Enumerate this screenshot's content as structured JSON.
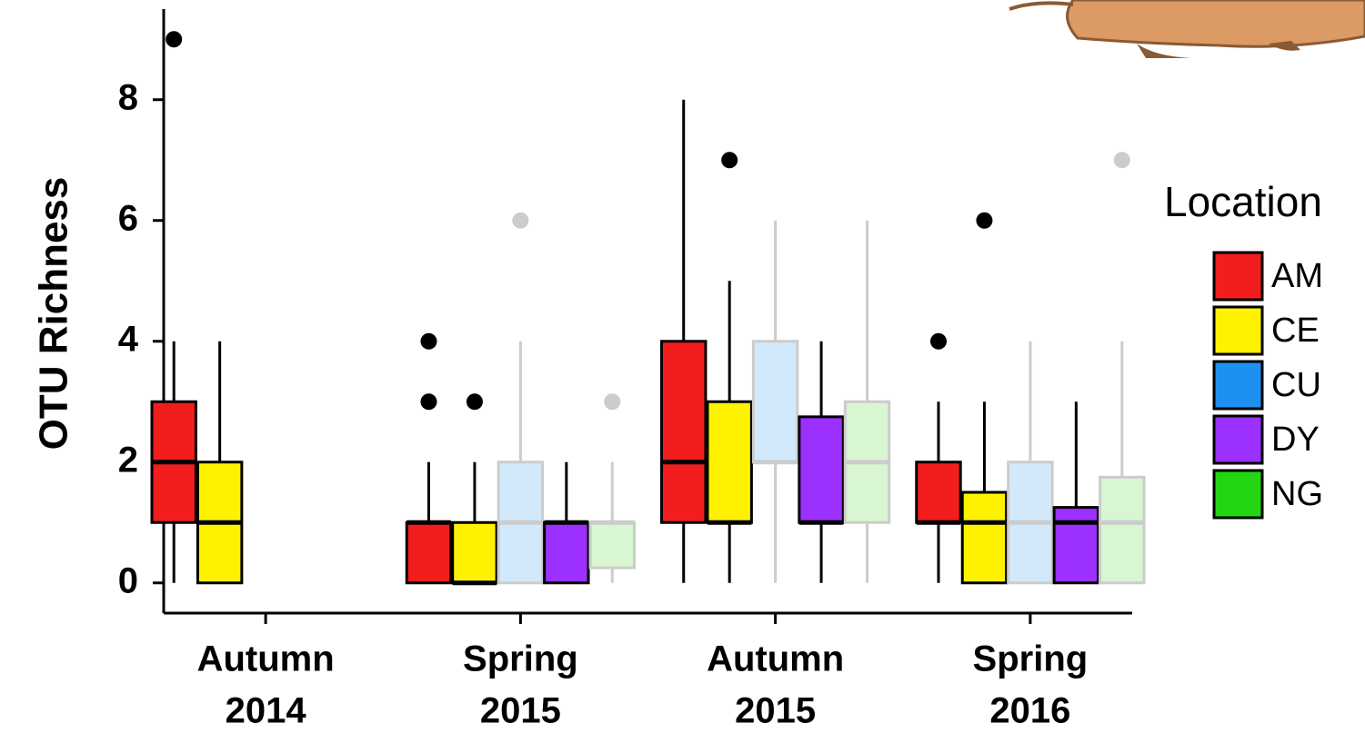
{
  "chart_data": {
    "type": "box",
    "y_label": "OTU Richness",
    "legend_title": "Location",
    "categories": [
      [
        "Autumn",
        "2014"
      ],
      [
        "Spring",
        "2015"
      ],
      [
        "Autumn",
        "2015"
      ],
      [
        "Spring",
        "2016"
      ]
    ],
    "ylim": [
      -0.5,
      9.5
    ],
    "yticks": [
      0,
      2,
      4,
      6,
      8
    ],
    "series": [
      {
        "name": "AM",
        "color": "#f21d1d",
        "fill": "#f21d1d",
        "outline": "#000000",
        "boxes": [
          {
            "min": 0,
            "q1": 1,
            "median": 2,
            "q3": 3,
            "max": 4,
            "outliers": [
              9
            ]
          },
          {
            "min": 0,
            "q1": 0,
            "median": 1,
            "q3": 1,
            "max": 2,
            "outliers": [
              3,
              4
            ]
          },
          {
            "min": 0,
            "q1": 1,
            "median": 2,
            "q3": 4,
            "max": 8,
            "outliers": []
          },
          {
            "min": 0,
            "q1": 1,
            "median": 1,
            "q3": 2,
            "max": 3,
            "outliers": [
              4
            ]
          }
        ]
      },
      {
        "name": "CE",
        "color": "#fff200",
        "fill": "#fff200",
        "outline": "#000000",
        "boxes": [
          {
            "min": 0,
            "q1": 0,
            "median": 1,
            "q3": 2,
            "max": 4,
            "outliers": []
          },
          {
            "min": 0,
            "q1": 0,
            "median": 0,
            "q3": 1,
            "max": 2,
            "outliers": [
              3
            ]
          },
          {
            "min": 0,
            "q1": 1,
            "median": 1,
            "q3": 3,
            "max": 5,
            "outliers": [
              7
            ]
          },
          {
            "min": 0,
            "q1": 0,
            "median": 1,
            "q3": 1.5,
            "max": 3,
            "outliers": [
              6
            ]
          }
        ]
      },
      {
        "name": "CU",
        "color": "#1e90f0",
        "fill": "#d2e9fb",
        "outline": "#cccccc",
        "boxes": [
          null,
          {
            "min": 0,
            "q1": 0,
            "median": 1,
            "q3": 2,
            "max": 4,
            "outliers": [
              6
            ]
          },
          {
            "min": 0,
            "q1": 2,
            "median": 2,
            "q3": 4,
            "max": 6,
            "outliers": []
          },
          {
            "min": 0,
            "q1": 0,
            "median": 1,
            "q3": 2,
            "max": 4,
            "outliers": []
          }
        ]
      },
      {
        "name": "DY",
        "color": "#9b30ff",
        "fill": "#9b30ff",
        "outline": "#000000",
        "boxes": [
          null,
          {
            "min": 0,
            "q1": 0,
            "median": 1,
            "q3": 1,
            "max": 2,
            "outliers": []
          },
          {
            "min": 0,
            "q1": 1,
            "median": 1,
            "q3": 2.75,
            "max": 4,
            "outliers": []
          },
          {
            "min": 0,
            "q1": 0,
            "median": 1,
            "q3": 1.25,
            "max": 3,
            "outliers": []
          }
        ]
      },
      {
        "name": "NG",
        "color": "#22d611",
        "fill": "#d8f6d2",
        "outline": "#cccccc",
        "boxes": [
          null,
          {
            "min": 0,
            "q1": 0.25,
            "median": 1,
            "q3": 1,
            "max": 2,
            "outliers": [
              3
            ]
          },
          {
            "min": 0,
            "q1": 1,
            "median": 2,
            "q3": 3,
            "max": 6,
            "outliers": []
          },
          {
            "min": 0,
            "q1": 0,
            "median": 1,
            "q3": 1.75,
            "max": 4,
            "outliers": [
              7
            ]
          }
        ]
      }
    ]
  }
}
